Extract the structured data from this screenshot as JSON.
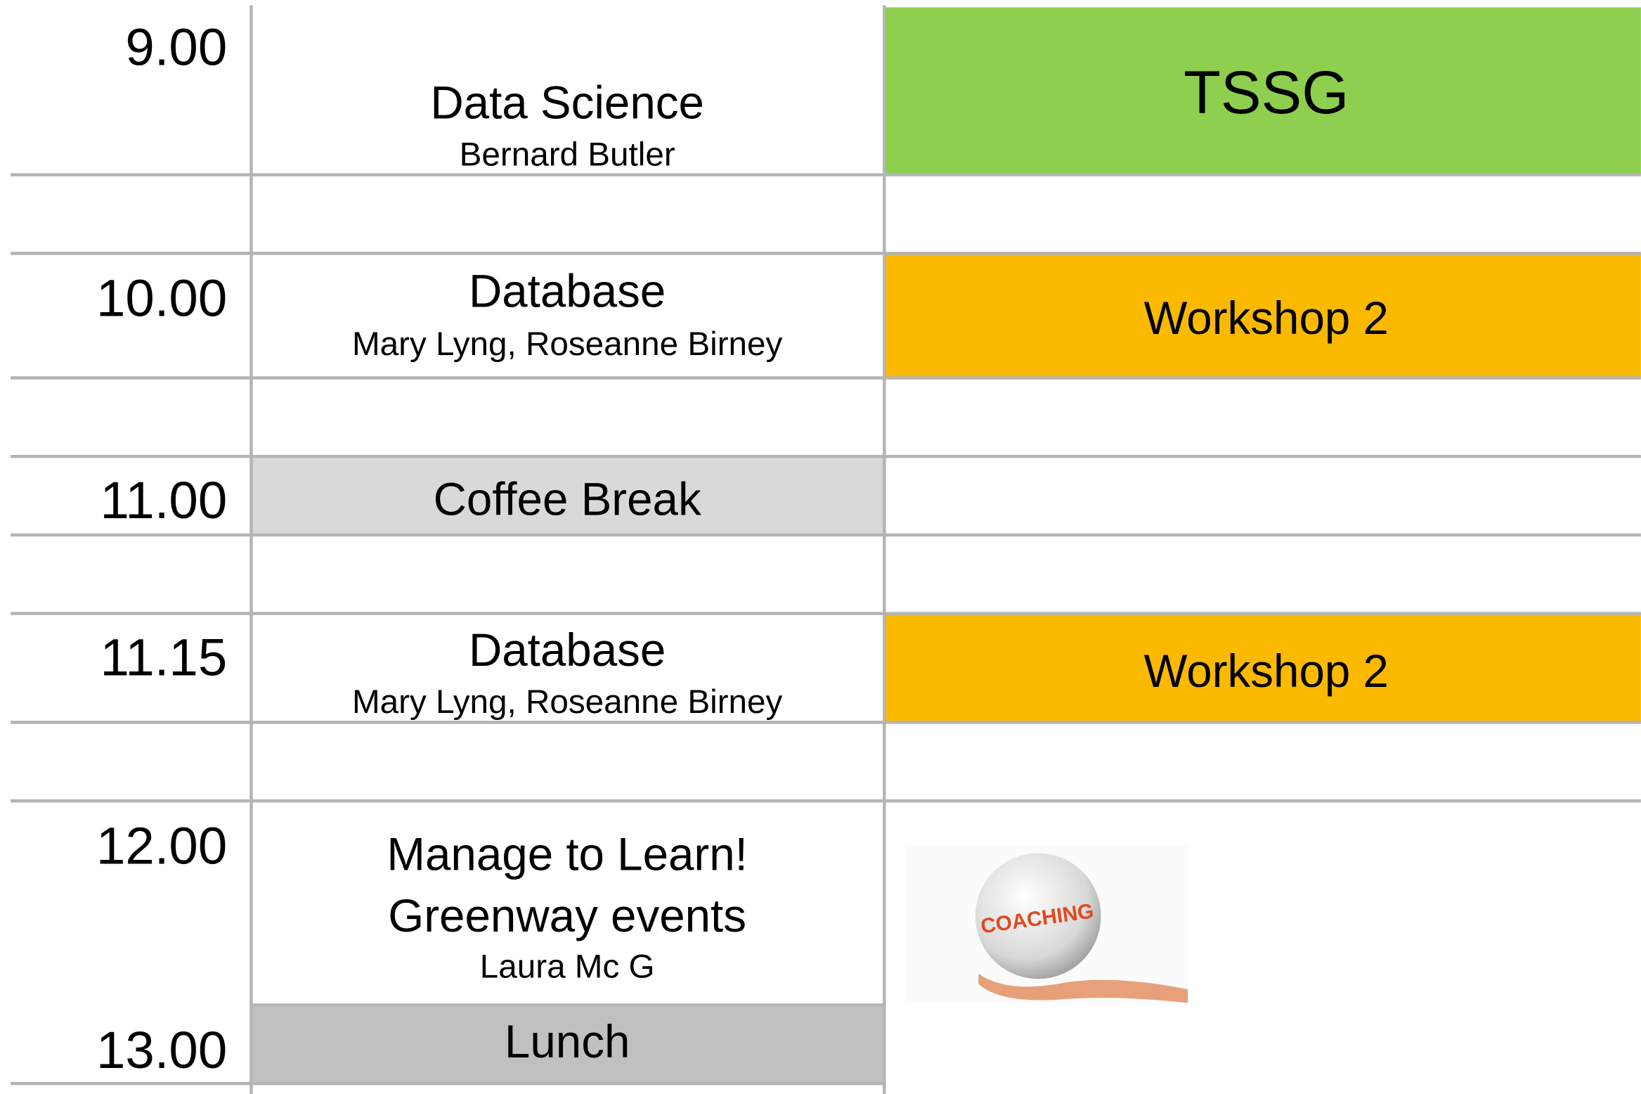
{
  "times": [
    "9.00",
    "10.00",
    "11.00",
    "11.15",
    "12.00",
    "13.00"
  ],
  "sessions": [
    {
      "title": "Data Science",
      "presenter": "Bernard Butler"
    },
    {
      "title": "Database",
      "presenter": "Mary Lyng, Roseanne Birney"
    },
    {
      "title": "Coffee Break"
    },
    {
      "title": "Database",
      "presenter": "Mary Lyng, Roseanne Birney"
    },
    {
      "title": "Manage to Learn!",
      "subtitle": "Greenway events",
      "presenter": "Laura Mc G"
    },
    {
      "title": "Lunch"
    }
  ],
  "tracks": [
    {
      "label": "TSSG"
    },
    {
      "label": "Workshop 2"
    },
    {
      "label": "Workshop 2"
    }
  ],
  "image_text": "COACHING"
}
